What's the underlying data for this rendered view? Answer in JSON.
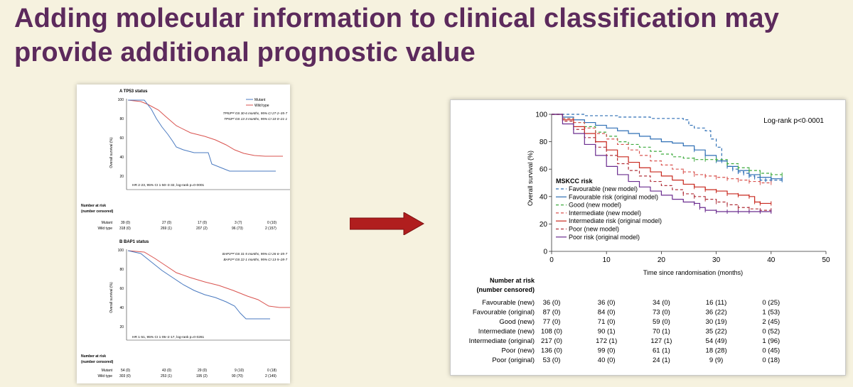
{
  "slide": {
    "title_line1": "Adding molecular information to clinical classification may",
    "title_line2": "provide additional prognostic value"
  },
  "colors": {
    "title": "#5c2a5c",
    "background": "#f6f2df",
    "arrow": "#b01e1e"
  },
  "left_panel": {
    "A": {
      "title": "A  TP53 status",
      "legend": [
        "Mutant",
        "Wild type"
      ],
      "stats1": "TP53ᵐᵘᵗ OS 30·6 months, 95% CI 27·2–35·7",
      "stats2": "TP53ʷᵗ OS 13·3 months, 95% CI 10·0–21·1",
      "hr": "HR 2·23, 95% CI 1·50–3·32, log-rank p=0·0001",
      "ylabel": "Overall survival (%)",
      "yticks": [
        "100",
        "80",
        "60",
        "40",
        "20"
      ],
      "risk_header1": "Number at risk",
      "risk_header2": "(number censored)",
      "rows": [
        {
          "label": "Mutant",
          "values": [
            "39 (0)",
            "27 (0)",
            "17 (0)",
            "3 (7)",
            "0 (10)"
          ]
        },
        {
          "label": "Wild type",
          "values": [
            "318 (0)",
            "269 (1)",
            "207 (2)",
            "96 (73)",
            "2 (157)"
          ]
        }
      ]
    },
    "B": {
      "title": "B  BAP1 status",
      "legend": [],
      "stats1": "BAP1ᵐᵘᵗ OS 31·5 months, 95% CI 26·6–35·7",
      "stats2": "BAP1ʷᵗ OS 22·1 months, 95% CI 13·5–28·7",
      "hr": "HR 1·51, 95% CI 1·05–2·17, log-rank p=0·0261",
      "ylabel": "Overall survival (%)",
      "yticks": [
        "100",
        "80",
        "60",
        "40",
        "20"
      ],
      "risk_header1": "Number at risk",
      "risk_header2": "(number censored)",
      "rows": [
        {
          "label": "Mutant",
          "values": [
            "54 (0)",
            "43 (0)",
            "29 (0)",
            "9 (10)",
            "0 (18)"
          ]
        },
        {
          "label": "Wild type",
          "values": [
            "303 (0)",
            "253 (1)",
            "195 (2)",
            "90 (70)",
            "2 (149)"
          ]
        }
      ]
    }
  },
  "chart_data": {
    "type": "line",
    "title": "",
    "xlabel": "Time since randomisation (months)",
    "ylabel": "Overall survival (%)",
    "xlim": [
      0,
      50
    ],
    "ylim": [
      0,
      100
    ],
    "xticks": [
      0,
      10,
      20,
      30,
      40,
      50
    ],
    "yticks": [
      0,
      20,
      40,
      60,
      80,
      100
    ],
    "annotation": "Log-rank p<0·0001",
    "legend_title": "MSKCC risk",
    "legend_position": "bottom-left",
    "series": [
      {
        "name": "Favourable (new model)",
        "color": "#2e6fb5",
        "dash": "4,3",
        "x": [
          0,
          3,
          6,
          9,
          12,
          15,
          18,
          20,
          22,
          24,
          25,
          26,
          27,
          28,
          29,
          30,
          31,
          32,
          33,
          34,
          35,
          36,
          37,
          38,
          39,
          40,
          42
        ],
        "y": [
          100,
          100,
          99,
          99,
          98,
          98,
          97,
          97,
          97,
          96,
          92,
          90,
          90,
          88,
          82,
          76,
          66,
          62,
          60,
          58,
          57,
          55,
          54,
          52,
          52,
          52,
          52
        ]
      },
      {
        "name": "Favourable risk (original model)",
        "color": "#2e6fb5",
        "dash": "",
        "x": [
          0,
          2,
          4,
          6,
          8,
          10,
          12,
          14,
          16,
          18,
          20,
          22,
          24,
          26,
          28,
          30,
          32,
          34,
          36,
          38,
          40,
          42
        ],
        "y": [
          100,
          98,
          96,
          94,
          92,
          90,
          88,
          86,
          84,
          82,
          80,
          79,
          77,
          74,
          70,
          66,
          62,
          59,
          56,
          54,
          53,
          53
        ]
      },
      {
        "name": "Good (new model)",
        "color": "#3daa3d",
        "dash": "4,3",
        "x": [
          0,
          2,
          4,
          6,
          8,
          10,
          12,
          14,
          16,
          18,
          20,
          22,
          24,
          26,
          28,
          30,
          32,
          34,
          36,
          38,
          40,
          42
        ],
        "y": [
          100,
          97,
          94,
          91,
          87,
          84,
          80,
          78,
          76,
          73,
          71,
          69,
          68,
          67,
          67,
          67,
          64,
          61,
          59,
          57,
          56,
          56
        ]
      },
      {
        "name": "Intermediate (new model)",
        "color": "#d9534f",
        "dash": "4,3",
        "x": [
          0,
          2,
          4,
          6,
          8,
          10,
          12,
          14,
          16,
          18,
          20,
          22,
          24,
          26,
          28,
          30,
          32,
          34,
          36,
          38,
          40
        ],
        "y": [
          100,
          97,
          94,
          90,
          86,
          82,
          78,
          74,
          70,
          66,
          63,
          60,
          58,
          56,
          55,
          54,
          53,
          52,
          51,
          50,
          50
        ]
      },
      {
        "name": "Intermediate risk (original model)",
        "color": "#c8281e",
        "dash": "",
        "x": [
          0,
          2,
          4,
          6,
          8,
          10,
          12,
          14,
          16,
          18,
          20,
          22,
          24,
          26,
          28,
          30,
          32,
          34,
          36,
          37,
          38,
          40
        ],
        "y": [
          100,
          96,
          91,
          86,
          80,
          74,
          69,
          65,
          61,
          58,
          55,
          52,
          49,
          47,
          45,
          44,
          42,
          41,
          40,
          36,
          35,
          35
        ]
      },
      {
        "name": "Poor (new model)",
        "color": "#b0303a",
        "dash": "4,3",
        "x": [
          0,
          2,
          4,
          6,
          8,
          10,
          12,
          14,
          16,
          18,
          20,
          22,
          24,
          26,
          28,
          30,
          32,
          34,
          36,
          38,
          40
        ],
        "y": [
          100,
          95,
          89,
          83,
          76,
          70,
          64,
          59,
          55,
          51,
          48,
          45,
          42,
          40,
          38,
          36,
          34,
          32,
          31,
          30,
          30
        ]
      },
      {
        "name": "Poor risk (original model)",
        "color": "#6b2d8f",
        "dash": "",
        "x": [
          0,
          2,
          4,
          6,
          8,
          10,
          12,
          14,
          16,
          18,
          20,
          22,
          24,
          26,
          27,
          28,
          30,
          32,
          34,
          36,
          38,
          40
        ],
        "y": [
          100,
          93,
          86,
          78,
          70,
          62,
          56,
          51,
          47,
          44,
          41,
          38,
          36,
          35,
          32,
          30,
          29,
          29,
          29,
          29,
          29,
          29
        ]
      }
    ],
    "risk_table": {
      "header1": "Number at risk",
      "header2": "(number censored)",
      "rows": [
        {
          "label": "Favourable (new)",
          "values": [
            "36 (0)",
            "36 (0)",
            "34 (0)",
            "16 (11)",
            "0 (25)"
          ]
        },
        {
          "label": "Favourable (original)",
          "values": [
            "87 (0)",
            "84 (0)",
            "73 (0)",
            "36 (22)",
            "1 (53)"
          ]
        },
        {
          "label": "Good (new)",
          "values": [
            "77 (0)",
            "71 (0)",
            "59 (0)",
            "30 (19)",
            "2 (45)"
          ]
        },
        {
          "label": "Intermediate (new)",
          "values": [
            "108 (0)",
            "90 (1)",
            "70 (1)",
            "35 (22)",
            "0 (52)"
          ]
        },
        {
          "label": "Intermediate (original)",
          "values": [
            "217 (0)",
            "172 (1)",
            "127 (1)",
            "54 (49)",
            "1 (96)"
          ]
        },
        {
          "label": "Poor (new)",
          "values": [
            "136 (0)",
            "99 (0)",
            "61 (1)",
            "18 (28)",
            "0 (45)"
          ]
        },
        {
          "label": "Poor (original)",
          "values": [
            "53 (0)",
            "40 (0)",
            "24 (1)",
            "9 (9)",
            "0 (18)"
          ]
        }
      ]
    }
  }
}
